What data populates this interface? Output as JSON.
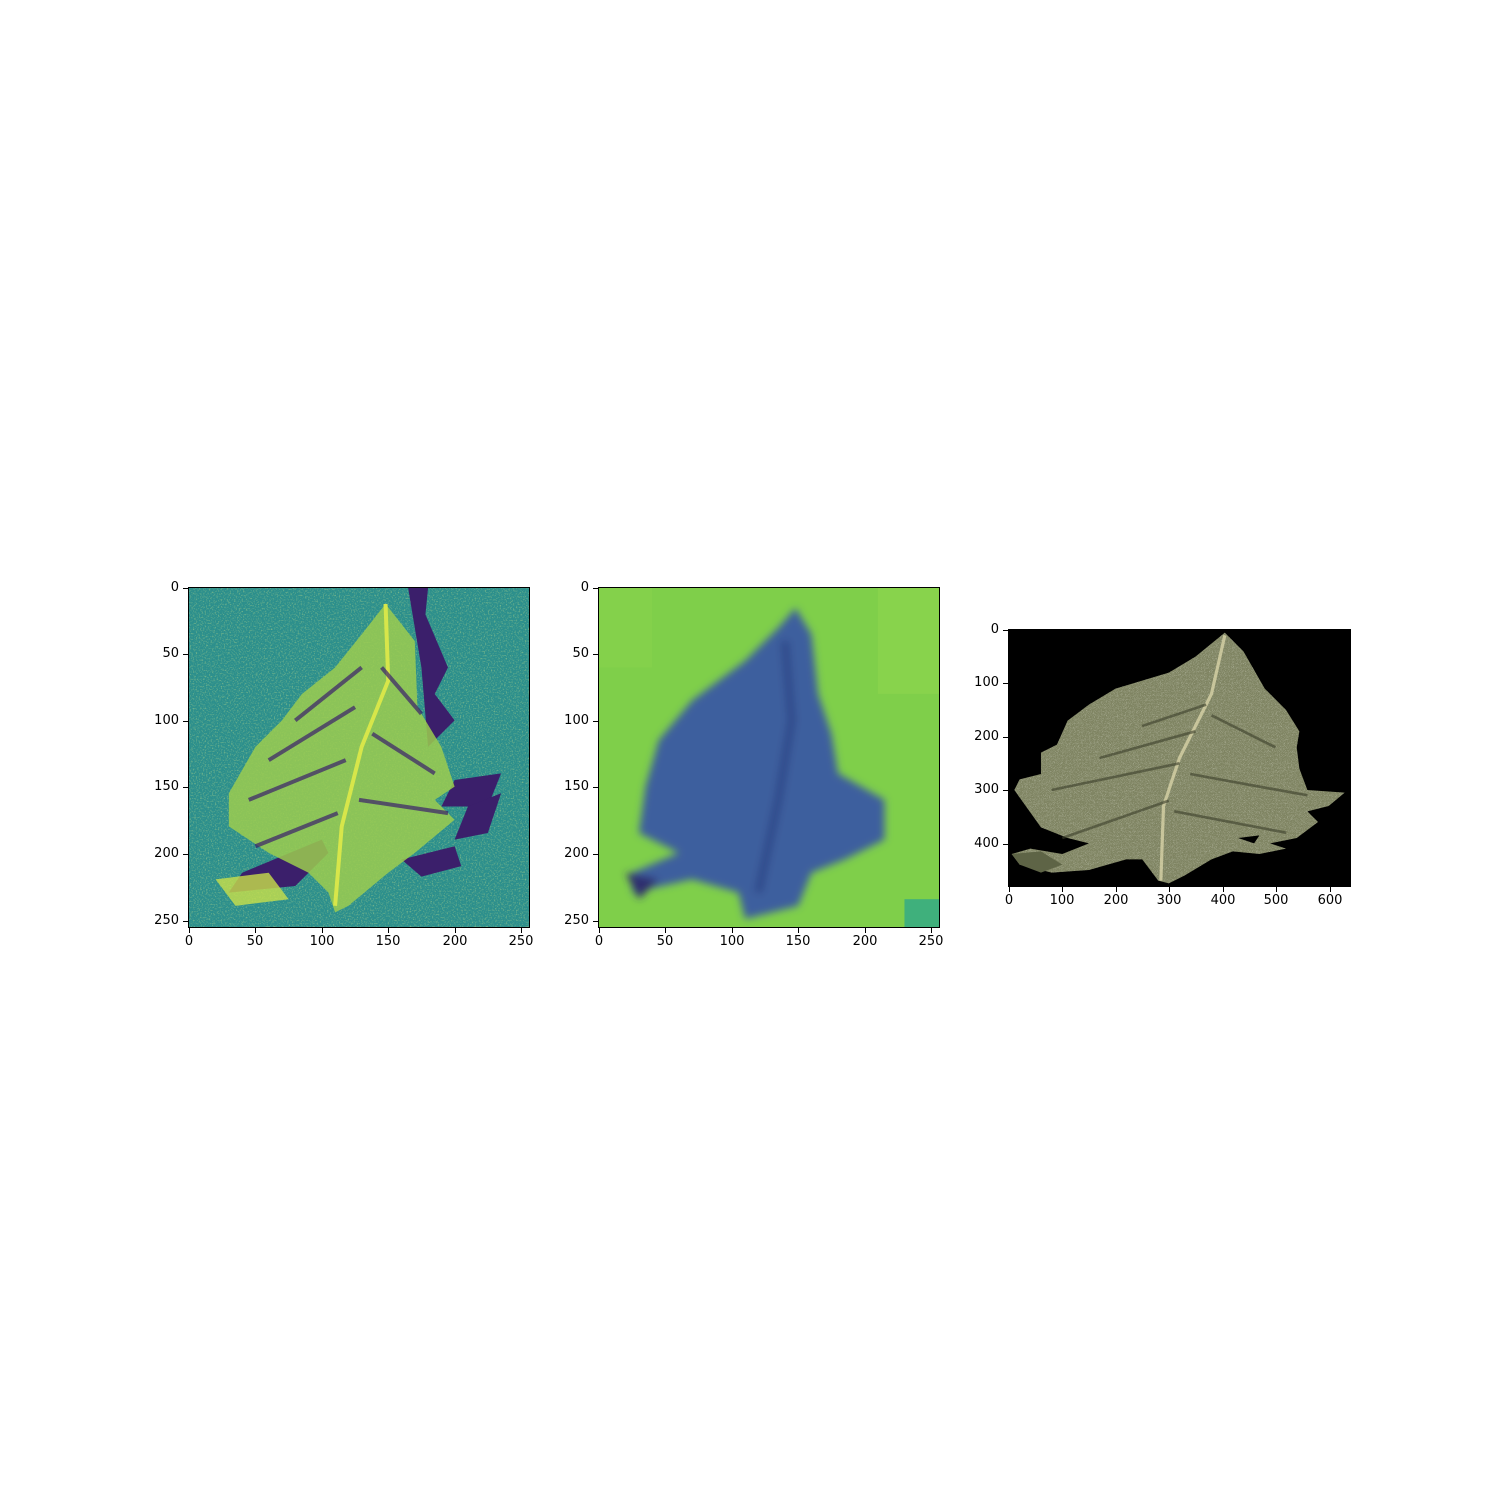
{
  "figure": {
    "panels": [
      {
        "id": "panel-1",
        "image_name": "leaf-grayscale-noise-viridis-image",
        "colormap": "viridis",
        "y_ticks": [
          "0",
          "50",
          "100",
          "150",
          "200",
          "250"
        ],
        "x_ticks": [
          "0",
          "50",
          "100",
          "150",
          "200",
          "250"
        ]
      },
      {
        "id": "panel-2",
        "image_name": "leaf-blurred-viridis-image",
        "colormap": "viridis",
        "y_ticks": [
          "0",
          "50",
          "100",
          "150",
          "200",
          "250"
        ],
        "x_ticks": [
          "0",
          "50",
          "100",
          "150",
          "200",
          "250"
        ]
      },
      {
        "id": "panel-3",
        "image_name": "leaf-original-color-image",
        "colormap": "rgb",
        "y_ticks": [
          "0",
          "100",
          "200",
          "300",
          "400"
        ],
        "x_ticks": [
          "0",
          "100",
          "200",
          "300",
          "400",
          "500",
          "600"
        ]
      }
    ]
  },
  "colors": {
    "viridis_dark": "#3b1f6b",
    "viridis_mid": "#2a8a8a",
    "viridis_teal": "#2c9f8a",
    "viridis_light": "#a6d84a",
    "viridis_yellow": "#d7e64a",
    "blur_bg": "#7fcf4a",
    "blur_leaf": "#3a5fa0",
    "photo_bg": "#000000",
    "photo_leaf": "#8a8f6c"
  }
}
